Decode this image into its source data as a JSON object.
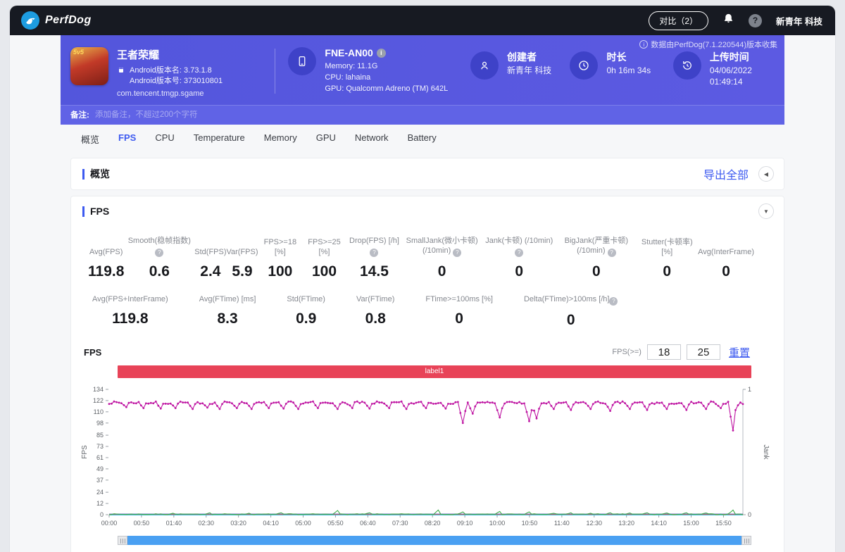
{
  "topbar": {
    "brand": "PerfDog",
    "compare_button": "对比（2）",
    "help": "?",
    "user": "新青年 科技"
  },
  "hero": {
    "collect_note": "数据由PerfDog(7.1.220544)版本收集",
    "app": {
      "badge": "5v5",
      "name": "王者荣耀",
      "android_version_name": "Android版本名: 3.73.1.8",
      "android_version_code": "Android版本号: 373010801",
      "package": "com.tencent.tmgp.sgame"
    },
    "device": {
      "model": "FNE-AN00",
      "memory": "Memory: 11.1G",
      "cpu": "CPU: lahaina",
      "gpu": "GPU: Qualcomm Adreno (TM) 642L"
    },
    "creator": {
      "label": "创建者",
      "value": "新青年 科技"
    },
    "duration": {
      "label": "时长",
      "value": "0h 16m 34s"
    },
    "upload": {
      "label": "上传时间",
      "value": "04/06/2022 01:49:14"
    },
    "note": {
      "label": "备注:",
      "placeholder": "添加备注，不超过200个字符"
    }
  },
  "tabs": [
    {
      "label": "概览"
    },
    {
      "label": "FPS"
    },
    {
      "label": "CPU"
    },
    {
      "label": "Temperature"
    },
    {
      "label": "Memory"
    },
    {
      "label": "GPU"
    },
    {
      "label": "Network"
    },
    {
      "label": "Battery"
    }
  ],
  "overview_card": {
    "title": "概览",
    "export_all": "导出全部"
  },
  "fps_card": {
    "title": "FPS",
    "metrics_row1": [
      {
        "label": "Avg(FPS)",
        "value": "119.8"
      },
      {
        "label": "Smooth(稳帧指数)",
        "value": "0.6"
      },
      {
        "label": "Std(FPS)",
        "value": "2.4"
      },
      {
        "label": "Var(FPS)",
        "value": "5.9"
      },
      {
        "label": "FPS>=18 [%]",
        "value": "100"
      },
      {
        "label": "FPS>=25 [%]",
        "value": "100"
      },
      {
        "label": "Drop(FPS) [/h]",
        "value": "14.5"
      },
      {
        "label": "SmallJank(微小卡顿) (/10min)",
        "value": "0"
      },
      {
        "label": "Jank(卡顿) (/10min)",
        "value": "0"
      },
      {
        "label": "BigJank(严重卡顿) (/10min)",
        "value": "0"
      },
      {
        "label": "Stutter(卡顿率) [%]",
        "value": "0"
      },
      {
        "label": "Avg(InterFrame)",
        "value": "0"
      }
    ],
    "metrics_row2": [
      {
        "label": "Avg(FPS+InterFrame)",
        "value": "119.8"
      },
      {
        "label": "Avg(FTime) [ms]",
        "value": "8.3"
      },
      {
        "label": "Std(FTime)",
        "value": "0.9"
      },
      {
        "label": "Var(FTime)",
        "value": "0.8"
      },
      {
        "label": "FTime>=100ms [%]",
        "value": "0"
      },
      {
        "label": "Delta(FTime)>100ms [/h]",
        "value": "0"
      }
    ],
    "chart_title": "FPS",
    "threshold": {
      "label": "FPS(>=)",
      "low": "18",
      "high": "25",
      "reset": "重置"
    },
    "band_label": "label1"
  },
  "chart_data": {
    "type": "line",
    "title": "FPS",
    "ylabel_left": "FPS",
    "ylabel_right": "Jank",
    "ylim_left": [
      0,
      134
    ],
    "ylim_right": [
      0,
      1
    ],
    "left_ticks": [
      134,
      122,
      110,
      98,
      85,
      73,
      61,
      49,
      37,
      24,
      12,
      0
    ],
    "right_ticks": [
      1,
      0
    ],
    "x_ticks": [
      "00:00",
      "00:50",
      "01:40",
      "02:30",
      "03:20",
      "04:10",
      "05:00",
      "05:50",
      "06:40",
      "07:30",
      "08:20",
      "09:10",
      "10:00",
      "10:50",
      "11:40",
      "12:30",
      "13:20",
      "14:10",
      "15:00",
      "15:50"
    ],
    "grid": false,
    "legend_position": "bottom",
    "series": [
      {
        "name": "FPS",
        "color": "#bf17a3",
        "baseline": 119.6,
        "noise": 1.2,
        "dips": [
          [
            0.027,
            115
          ],
          [
            0.055,
            114
          ],
          [
            0.08,
            113.5
          ],
          [
            0.105,
            114
          ],
          [
            0.13,
            113
          ],
          [
            0.155,
            114.5
          ],
          [
            0.175,
            113
          ],
          [
            0.2,
            114
          ],
          [
            0.225,
            113
          ],
          [
            0.25,
            114
          ],
          [
            0.275,
            113.5
          ],
          [
            0.3,
            113
          ],
          [
            0.33,
            114
          ],
          [
            0.36,
            113
          ],
          [
            0.385,
            114
          ],
          [
            0.41,
            113.5
          ],
          [
            0.44,
            114
          ],
          [
            0.47,
            113
          ],
          [
            0.5,
            114
          ],
          [
            0.53,
            113.5
          ],
          [
            0.558,
            98
          ],
          [
            0.572,
            108
          ],
          [
            0.617,
            104
          ],
          [
            0.662,
            100
          ],
          [
            0.676,
            103
          ],
          [
            0.7,
            113
          ],
          [
            0.73,
            112
          ],
          [
            0.76,
            113
          ],
          [
            0.79,
            111
          ],
          [
            0.82,
            113
          ],
          [
            0.85,
            112
          ],
          [
            0.88,
            113
          ],
          [
            0.91,
            112
          ],
          [
            0.94,
            113
          ],
          [
            0.965,
            114
          ],
          [
            0.985,
            90
          ],
          [
            0.993,
            117
          ]
        ]
      },
      {
        "name": "Smooth",
        "color": "#3fae4c",
        "baseline": 0.5,
        "noise": 0.4,
        "dips": [
          [
            0.1,
            1.5
          ],
          [
            0.16,
            2
          ],
          [
            0.22,
            1.5
          ],
          [
            0.27,
            2
          ],
          [
            0.36,
            4.5
          ],
          [
            0.41,
            2
          ],
          [
            0.52,
            5
          ],
          [
            0.558,
            3
          ],
          [
            0.617,
            3.5
          ],
          [
            0.662,
            3
          ],
          [
            0.7,
            1.5
          ],
          [
            0.73,
            2
          ],
          [
            0.76,
            1.5
          ],
          [
            0.79,
            2
          ],
          [
            0.82,
            1.8
          ],
          [
            0.85,
            2
          ],
          [
            0.88,
            1.8
          ],
          [
            0.91,
            2
          ],
          [
            0.94,
            1.8
          ],
          [
            0.985,
            5
          ]
        ]
      },
      {
        "name": "SmallJank",
        "color": "#3b2fd4",
        "baseline": 0,
        "noise": 0,
        "dips": []
      },
      {
        "name": "Jank",
        "color": "#f07c23",
        "baseline": 0,
        "noise": 0,
        "dips": []
      },
      {
        "name": "BigJank",
        "color": "#e0242e",
        "baseline": 0,
        "noise": 0,
        "dips": []
      },
      {
        "name": "Stutter",
        "color": "#4090f0",
        "baseline": 0,
        "noise": 0,
        "dips": []
      },
      {
        "name": "InterFrame",
        "color": "#38c8d8",
        "baseline": 0,
        "noise": 0,
        "dips": []
      }
    ]
  }
}
